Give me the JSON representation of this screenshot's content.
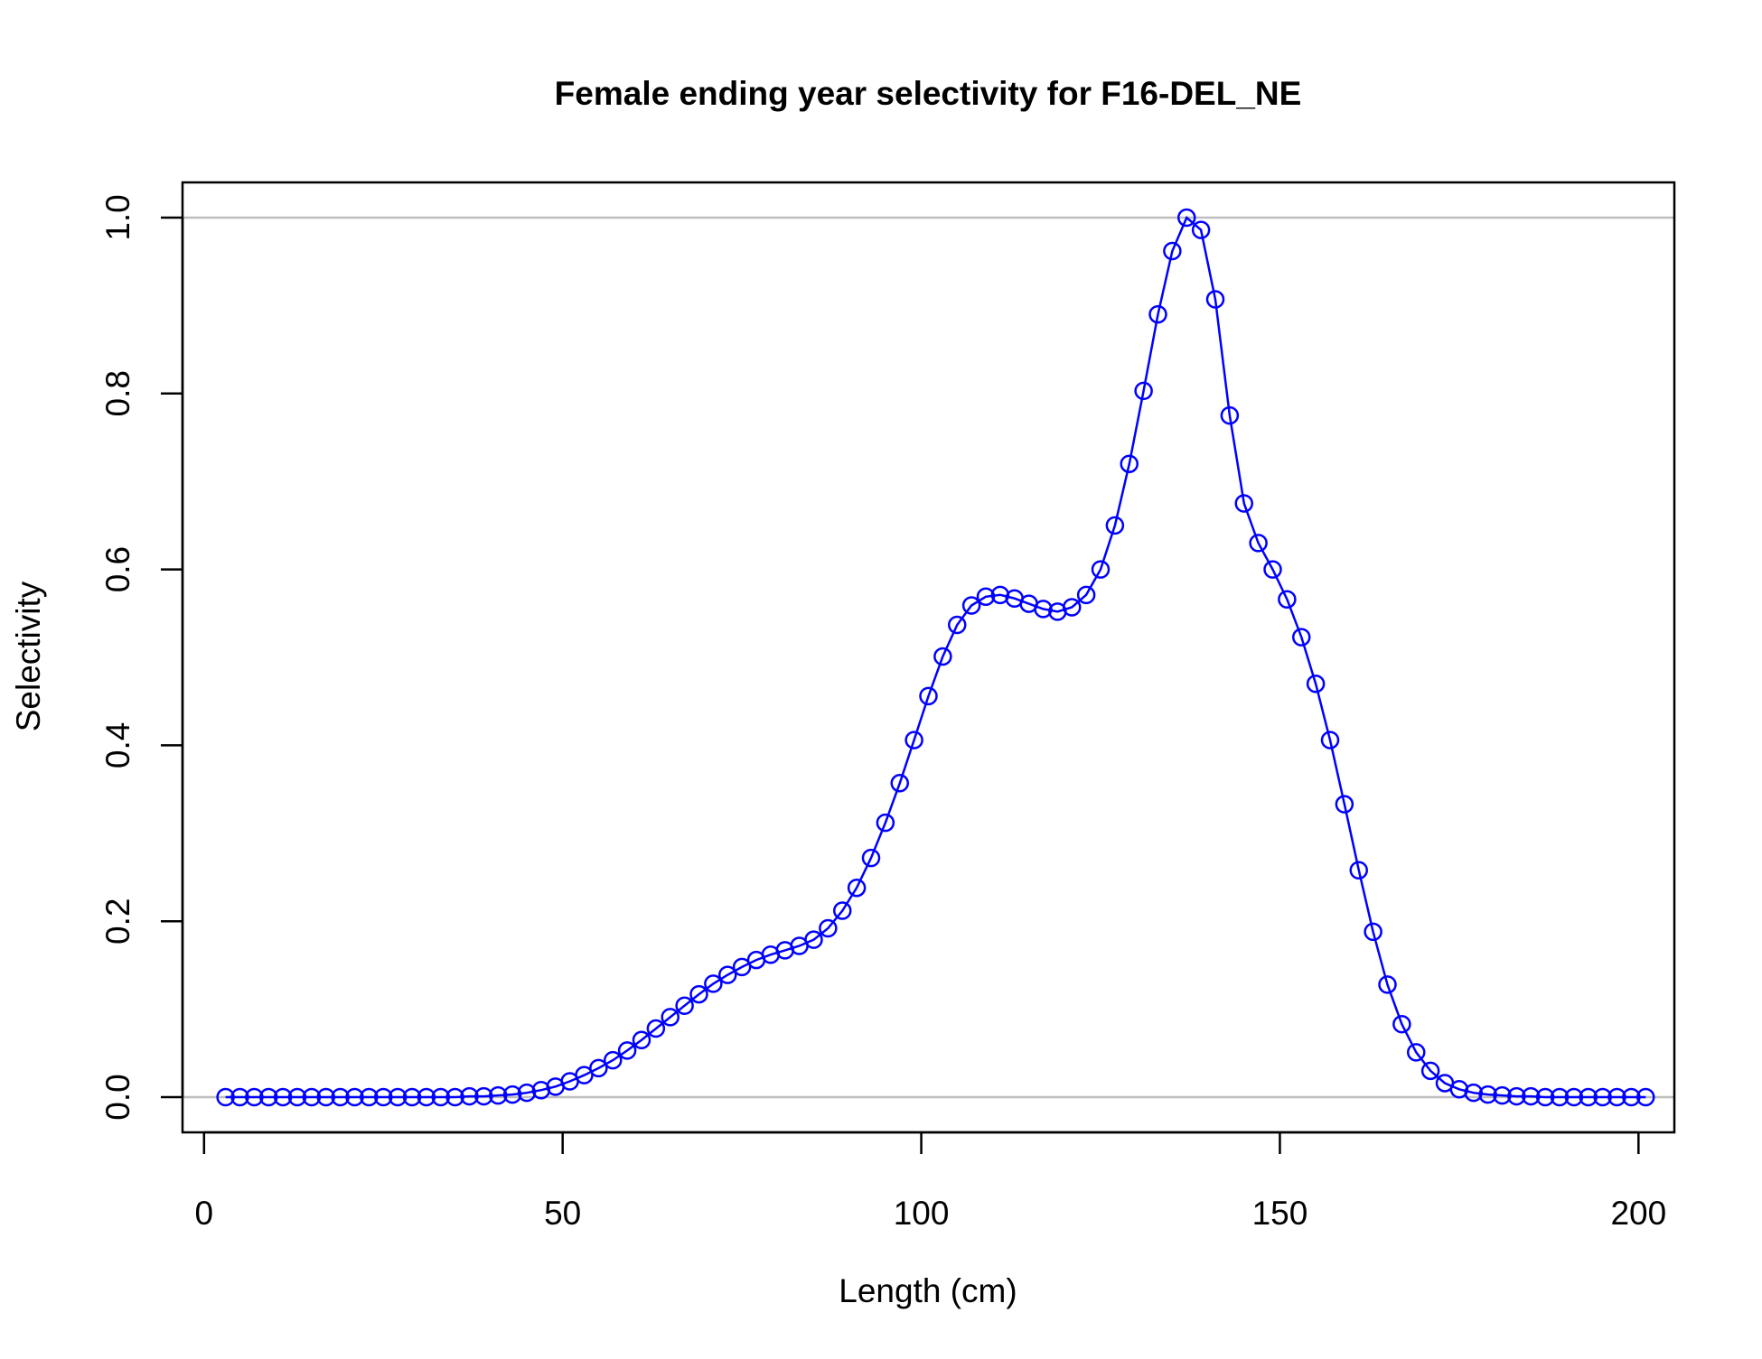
{
  "chart_data": {
    "type": "line",
    "title": "Female ending year selectivity for F16-DEL_NE",
    "xlabel": "Length (cm)",
    "ylabel": "Selectivity",
    "xlim": [
      -3,
      205
    ],
    "ylim": [
      -0.04,
      1.04
    ],
    "x_ticks": [
      0,
      50,
      100,
      150,
      200
    ],
    "x_tick_labels": [
      "0",
      "50",
      "100",
      "150",
      "200"
    ],
    "y_ticks": [
      0,
      0.2,
      0.4,
      0.6,
      0.8,
      1.0
    ],
    "y_tick_labels": [
      "0.0",
      "0.2",
      "0.4",
      "0.6",
      "0.8",
      "1.0"
    ],
    "reference_lines_y": [
      0,
      1
    ],
    "grid": false,
    "marker": "open-circle",
    "colors": {
      "series": "#0000ff",
      "reference": "#bebebe",
      "axis": "#000000"
    },
    "series": [
      {
        "x": [
          3,
          5,
          7,
          9,
          11,
          13,
          15,
          17,
          19,
          21,
          23,
          25,
          27,
          29,
          31,
          33,
          35,
          37,
          39,
          41,
          43,
          45,
          47,
          49,
          51,
          53,
          55,
          57,
          59,
          61,
          63,
          65,
          67,
          69,
          71,
          73,
          75,
          77,
          79,
          81,
          83,
          85,
          87,
          89,
          91,
          93,
          95,
          97,
          99,
          101,
          103,
          105,
          107,
          109,
          111,
          113,
          115,
          117,
          119,
          121,
          123,
          125,
          127,
          129,
          131,
          133,
          135,
          137,
          139,
          141,
          143,
          145,
          147,
          149,
          151,
          153,
          155,
          157,
          159,
          161,
          163,
          165,
          167,
          169,
          171,
          173,
          175,
          177,
          179,
          181,
          183,
          185,
          187,
          189,
          191,
          193,
          195,
          197,
          199,
          201
        ],
        "values": [
          0,
          0,
          0,
          0,
          0,
          0,
          0,
          0,
          0,
          0,
          0,
          0,
          0,
          0,
          0,
          0,
          0,
          0.001,
          0.001,
          0.002,
          0.003,
          0.005,
          0.008,
          0.012,
          0.018,
          0.025,
          0.033,
          0.042,
          0.053,
          0.065,
          0.078,
          0.091,
          0.104,
          0.117,
          0.129,
          0.139,
          0.148,
          0.156,
          0.162,
          0.167,
          0.172,
          0.179,
          0.192,
          0.212,
          0.238,
          0.272,
          0.312,
          0.357,
          0.406,
          0.456,
          0.501,
          0.537,
          0.559,
          0.569,
          0.571,
          0.567,
          0.561,
          0.555,
          0.552,
          0.557,
          0.571,
          0.6,
          0.65,
          0.72,
          0.803,
          0.89,
          0.962,
          1.0,
          0.986,
          0.907,
          0.775,
          0.675,
          0.63,
          0.6,
          0.566,
          0.523,
          0.47,
          0.406,
          0.333,
          0.258,
          0.188,
          0.128,
          0.083,
          0.051,
          0.03,
          0.016,
          0.009,
          0.005,
          0.003,
          0.002,
          0.001,
          0.001,
          0,
          0,
          0,
          0,
          0,
          0,
          0,
          0
        ]
      }
    ]
  }
}
